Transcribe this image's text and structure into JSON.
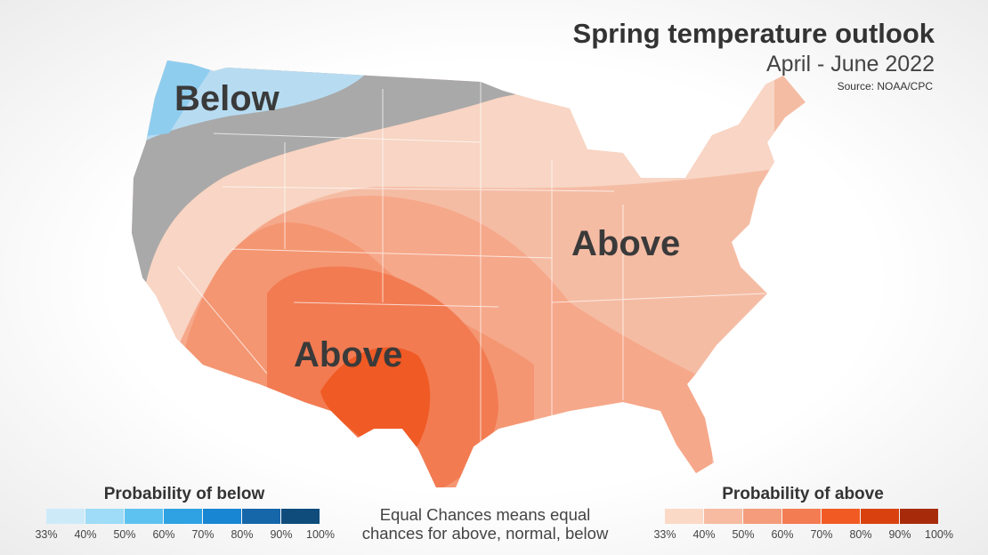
{
  "header": {
    "title": "Spring temperature outlook",
    "subtitle": "April - June 2022",
    "source": "Source: NOAA/CPC"
  },
  "map": {
    "labels": [
      "Below",
      "Above",
      "Above"
    ]
  },
  "legend_below": {
    "title": "Probability of below",
    "colors": [
      "#cdeaf9",
      "#9edcf7",
      "#5ec2f0",
      "#2ea2e2",
      "#1886d2",
      "#1666aa",
      "#0f4c7c"
    ],
    "ticks": [
      {
        "value": 33,
        "label": "33%"
      },
      {
        "value": 40,
        "label": "40%"
      },
      {
        "value": 50,
        "label": "50%"
      },
      {
        "value": 60,
        "label": "60%"
      },
      {
        "value": 70,
        "label": "70%"
      },
      {
        "value": 80,
        "label": "80%"
      },
      {
        "value": 90,
        "label": "90%"
      },
      {
        "value": 100,
        "label": "100%"
      }
    ]
  },
  "legend_above": {
    "title": "Probability of above",
    "colors": [
      "#fbd9c7",
      "#f7bba2",
      "#f49c7b",
      "#f37c52",
      "#f25a24",
      "#d9420f",
      "#a72b0b"
    ],
    "ticks": [
      {
        "value": 33,
        "label": "33%"
      },
      {
        "value": 40,
        "label": "40%"
      },
      {
        "value": 50,
        "label": "50%"
      },
      {
        "value": 60,
        "label": "60%"
      },
      {
        "value": 70,
        "label": "70%"
      },
      {
        "value": 80,
        "label": "80%"
      },
      {
        "value": 90,
        "label": "90%"
      },
      {
        "value": 100,
        "label": "100%"
      }
    ]
  },
  "note": {
    "line1": "Equal Chances means equal",
    "line2": "chances for above, normal, below"
  }
}
